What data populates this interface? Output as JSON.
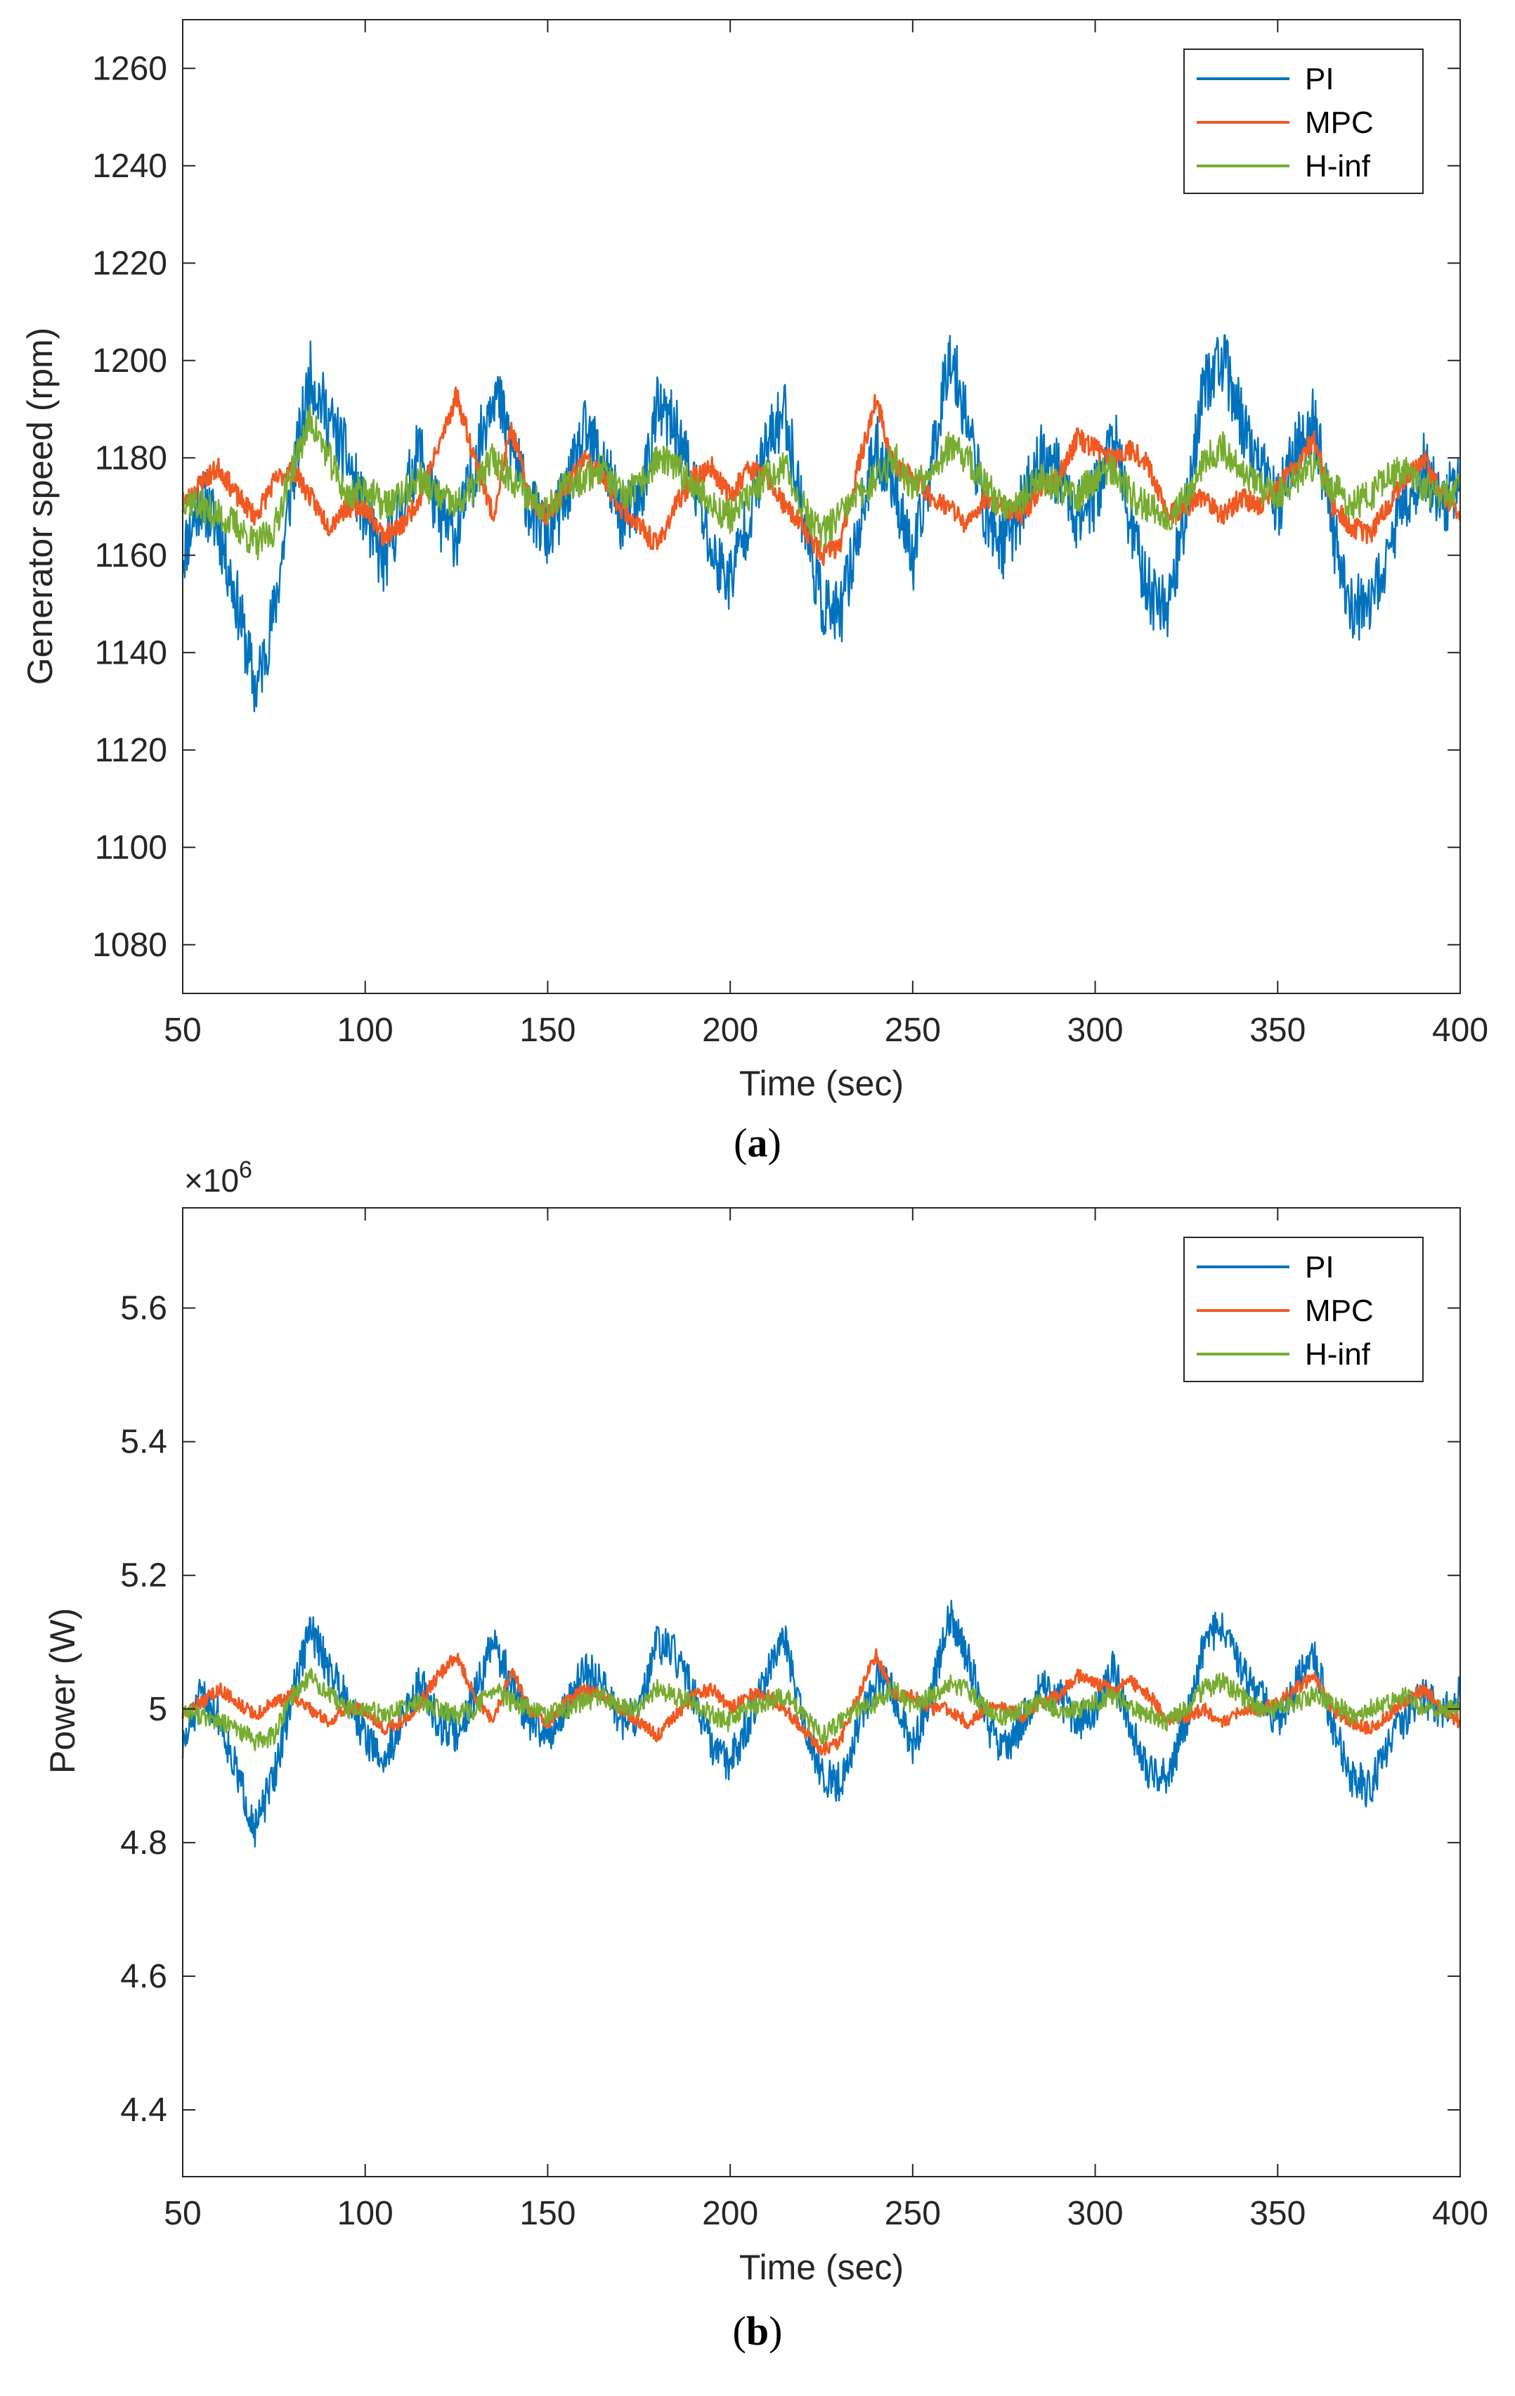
{
  "colors": {
    "PI": "#0072BD",
    "MPC": "#F05A22",
    "H-inf": "#77AC30",
    "axis": "#262626"
  },
  "chart_data": [
    {
      "type": "line",
      "panel": "a",
      "caption": "a",
      "xlabel": "Time (sec)",
      "ylabel": "Generator speed (rpm)",
      "xlim": [
        50,
        400
      ],
      "ylim": [
        1070,
        1270
      ],
      "xticks": [
        "50",
        "100",
        "150",
        "200",
        "250",
        "300",
        "350",
        "400"
      ],
      "yticks": [
        "1080",
        "1100",
        "1120",
        "1140",
        "1160",
        "1180",
        "1200",
        "1220",
        "1240",
        "1260"
      ],
      "legend_position": "top-right",
      "legend": [
        "PI",
        "MPC",
        "H-inf"
      ],
      "series": [
        {
          "name": "PI",
          "noise": 7,
          "seed": 11,
          "x": [
            50,
            55,
            60,
            65,
            70,
            75,
            80,
            85,
            90,
            95,
            100,
            105,
            110,
            115,
            120,
            125,
            130,
            135,
            140,
            145,
            150,
            155,
            160,
            165,
            170,
            175,
            180,
            185,
            190,
            195,
            200,
            205,
            210,
            215,
            220,
            225,
            230,
            235,
            240,
            245,
            250,
            255,
            260,
            265,
            270,
            275,
            280,
            285,
            290,
            295,
            300,
            305,
            310,
            315,
            320,
            325,
            330,
            335,
            340,
            345,
            350,
            355,
            360,
            365,
            370,
            375,
            380,
            385,
            390,
            395,
            400
          ],
          "y": [
            1160,
            1172,
            1165,
            1150,
            1132,
            1148,
            1175,
            1197,
            1188,
            1180,
            1168,
            1158,
            1170,
            1182,
            1168,
            1164,
            1178,
            1195,
            1183,
            1170,
            1164,
            1172,
            1185,
            1180,
            1168,
            1170,
            1190,
            1186,
            1175,
            1160,
            1155,
            1168,
            1182,
            1190,
            1168,
            1150,
            1147,
            1165,
            1182,
            1175,
            1158,
            1178,
            1202,
            1188,
            1168,
            1162,
            1170,
            1180,
            1177,
            1168,
            1172,
            1185,
            1165,
            1152,
            1150,
            1170,
            1196,
            1200,
            1188,
            1178,
            1170,
            1182,
            1188,
            1165,
            1150,
            1148,
            1160,
            1172,
            1178,
            1170,
            1176
          ]
        },
        {
          "name": "MPC",
          "noise": 2.2,
          "seed": 23,
          "x": [
            50,
            55,
            60,
            65,
            70,
            75,
            80,
            85,
            90,
            95,
            100,
            105,
            110,
            115,
            120,
            125,
            130,
            135,
            140,
            145,
            150,
            155,
            160,
            165,
            170,
            175,
            180,
            185,
            190,
            195,
            200,
            205,
            210,
            215,
            220,
            225,
            230,
            235,
            240,
            245,
            250,
            255,
            260,
            265,
            270,
            275,
            280,
            285,
            290,
            295,
            300,
            305,
            310,
            315,
            320,
            325,
            330,
            335,
            340,
            345,
            350,
            355,
            360,
            365,
            370,
            375,
            380,
            385,
            390,
            395,
            400
          ],
          "y": [
            1170,
            1175,
            1178,
            1172,
            1168,
            1175,
            1178,
            1172,
            1166,
            1170,
            1170,
            1164,
            1166,
            1172,
            1182,
            1193,
            1180,
            1168,
            1186,
            1172,
            1168,
            1174,
            1180,
            1176,
            1170,
            1166,
            1162,
            1170,
            1176,
            1178,
            1172,
            1178,
            1176,
            1170,
            1166,
            1160,
            1162,
            1178,
            1192,
            1178,
            1176,
            1172,
            1170,
            1166,
            1172,
            1170,
            1168,
            1174,
            1176,
            1184,
            1182,
            1180,
            1182,
            1178,
            1168,
            1170,
            1172,
            1168,
            1172,
            1170,
            1174,
            1178,
            1184,
            1170,
            1166,
            1164,
            1170,
            1176,
            1180,
            1172,
            1168
          ]
        },
        {
          "name": "H-inf",
          "noise": 3.5,
          "seed": 37,
          "x": [
            50,
            55,
            60,
            65,
            70,
            75,
            80,
            85,
            90,
            95,
            100,
            105,
            110,
            115,
            120,
            125,
            130,
            135,
            140,
            145,
            150,
            155,
            160,
            165,
            170,
            175,
            180,
            185,
            190,
            195,
            200,
            205,
            210,
            215,
            220,
            225,
            230,
            235,
            240,
            245,
            250,
            255,
            260,
            265,
            270,
            275,
            280,
            285,
            290,
            295,
            300,
            305,
            310,
            315,
            320,
            325,
            330,
            335,
            340,
            345,
            350,
            355,
            360,
            365,
            370,
            375,
            380,
            385,
            390,
            395,
            400
          ],
          "y": [
            1172,
            1170,
            1168,
            1166,
            1162,
            1165,
            1178,
            1188,
            1180,
            1172,
            1174,
            1170,
            1172,
            1176,
            1172,
            1170,
            1174,
            1180,
            1176,
            1172,
            1170,
            1174,
            1176,
            1178,
            1172,
            1174,
            1180,
            1178,
            1175,
            1170,
            1168,
            1172,
            1176,
            1178,
            1170,
            1164,
            1168,
            1172,
            1176,
            1180,
            1174,
            1178,
            1182,
            1180,
            1174,
            1170,
            1172,
            1176,
            1174,
            1172,
            1176,
            1178,
            1172,
            1170,
            1168,
            1172,
            1180,
            1182,
            1178,
            1174,
            1172,
            1176,
            1178,
            1174,
            1170,
            1172,
            1176,
            1178,
            1174,
            1172,
            1174
          ]
        }
      ]
    },
    {
      "type": "line",
      "panel": "b",
      "caption": "b",
      "xlabel": "Time (sec)",
      "ylabel": "Power (W)",
      "exponent_label": "×10",
      "exponent_power": "6",
      "xlim": [
        50,
        400
      ],
      "ylim": [
        4.3,
        5.75
      ],
      "xticks": [
        "50",
        "100",
        "150",
        "200",
        "250",
        "300",
        "350",
        "400"
      ],
      "yticks": [
        "4.4",
        "4.6",
        "4.8",
        "5",
        "5.2",
        "5.4",
        "5.6"
      ],
      "ytick_values": [
        4.4,
        4.6,
        4.8,
        5.0,
        5.2,
        5.4,
        5.6
      ],
      "legend_position": "top-right",
      "legend": [
        "PI",
        "MPC",
        "H-inf"
      ],
      "series": [
        {
          "name": "PI",
          "noise": 0.03,
          "seed": 51,
          "x": [
            50,
            55,
            60,
            65,
            70,
            75,
            80,
            85,
            90,
            95,
            100,
            105,
            110,
            115,
            120,
            125,
            130,
            135,
            140,
            145,
            150,
            155,
            160,
            165,
            170,
            175,
            180,
            185,
            190,
            195,
            200,
            205,
            210,
            215,
            220,
            225,
            230,
            235,
            240,
            245,
            250,
            255,
            260,
            265,
            270,
            275,
            280,
            285,
            290,
            295,
            300,
            305,
            310,
            315,
            320,
            325,
            330,
            335,
            340,
            345,
            350,
            355,
            360,
            365,
            370,
            375,
            380,
            385,
            390,
            395,
            400
          ],
          "y": [
            4.94,
            5.02,
            4.99,
            4.9,
            4.82,
            4.9,
            5.02,
            5.12,
            5.06,
            5.02,
            4.96,
            4.92,
            4.98,
            5.04,
            4.98,
            4.96,
            5.02,
            5.1,
            5.04,
            4.98,
            4.96,
            5.0,
            5.06,
            5.04,
            4.98,
            4.99,
            5.1,
            5.08,
            5.02,
            4.94,
            4.92,
            4.98,
            5.05,
            5.1,
            4.98,
            4.9,
            4.89,
            4.97,
            5.05,
            5.02,
            4.94,
            5.02,
            5.14,
            5.08,
            4.98,
            4.94,
            4.98,
            5.03,
            5.02,
            4.98,
            5.0,
            5.06,
            4.97,
            4.9,
            4.9,
            4.98,
            5.1,
            5.13,
            5.06,
            5.02,
            4.98,
            5.04,
            5.08,
            4.98,
            4.9,
            4.88,
            4.94,
            4.99,
            5.02,
            4.99,
            5.02
          ]
        },
        {
          "name": "MPC",
          "noise": 0.01,
          "seed": 63,
          "x": [
            50,
            55,
            60,
            65,
            70,
            75,
            80,
            85,
            90,
            95,
            100,
            105,
            110,
            115,
            120,
            125,
            130,
            135,
            140,
            145,
            150,
            155,
            160,
            165,
            170,
            175,
            180,
            185,
            190,
            195,
            200,
            205,
            210,
            215,
            220,
            225,
            230,
            235,
            240,
            245,
            250,
            255,
            260,
            265,
            270,
            275,
            280,
            285,
            290,
            295,
            300,
            305,
            310,
            315,
            320,
            325,
            330,
            335,
            340,
            345,
            350,
            355,
            360,
            365,
            370,
            375,
            380,
            385,
            390,
            395,
            400
          ],
          "y": [
            4.99,
            5.01,
            5.03,
            5.01,
            4.99,
            5.01,
            5.02,
            5.0,
            4.98,
            5.0,
            5.0,
            4.97,
            4.98,
            5.01,
            5.05,
            5.08,
            5.02,
            4.98,
            5.06,
            5.0,
            4.98,
            5.01,
            5.03,
            5.02,
            5.0,
            4.98,
            4.96,
            4.99,
            5.02,
            5.03,
            5.0,
            5.02,
            5.02,
            5.0,
            4.97,
            4.94,
            4.95,
            5.02,
            5.08,
            5.02,
            5.02,
            5.0,
            5.0,
            4.98,
            5.0,
            5.0,
            4.99,
            5.01,
            5.02,
            5.05,
            5.04,
            5.03,
            5.04,
            5.02,
            4.98,
            4.99,
            5.0,
            4.98,
            5.0,
            5.0,
            5.01,
            5.03,
            5.05,
            5.0,
            4.98,
            4.97,
            4.99,
            5.01,
            5.03,
            5.0,
            4.98
          ]
        },
        {
          "name": "H-inf",
          "noise": 0.015,
          "seed": 77,
          "x": [
            50,
            55,
            60,
            65,
            70,
            75,
            80,
            85,
            90,
            95,
            100,
            105,
            110,
            115,
            120,
            125,
            130,
            135,
            140,
            145,
            150,
            155,
            160,
            165,
            170,
            175,
            180,
            185,
            190,
            195,
            200,
            205,
            210,
            215,
            220,
            225,
            230,
            235,
            240,
            245,
            250,
            255,
            260,
            265,
            270,
            275,
            280,
            285,
            290,
            295,
            300,
            305,
            310,
            315,
            320,
            325,
            330,
            335,
            340,
            345,
            350,
            355,
            360,
            365,
            370,
            375,
            380,
            385,
            390,
            395,
            400
          ],
          "y": [
            5.0,
            4.99,
            4.98,
            4.97,
            4.95,
            4.96,
            5.02,
            5.05,
            5.02,
            5.0,
            5.0,
            4.99,
            5.0,
            5.01,
            5.0,
            4.99,
            5.0,
            5.03,
            5.01,
            5.0,
            4.99,
            5.0,
            5.01,
            5.02,
            5.0,
            5.0,
            5.03,
            5.02,
            5.01,
            4.99,
            4.98,
            5.0,
            5.01,
            5.02,
            4.99,
            4.96,
            4.98,
            5.0,
            5.01,
            5.03,
            5.0,
            5.02,
            5.04,
            5.03,
            5.0,
            4.99,
            5.0,
            5.01,
            5.0,
            5.0,
            5.01,
            5.02,
            5.0,
            4.99,
            4.98,
            5.0,
            5.03,
            5.04,
            5.02,
            5.0,
            5.0,
            5.01,
            5.02,
            5.01,
            4.99,
            5.0,
            5.01,
            5.02,
            5.0,
            5.0,
            5.0
          ]
        }
      ]
    }
  ]
}
